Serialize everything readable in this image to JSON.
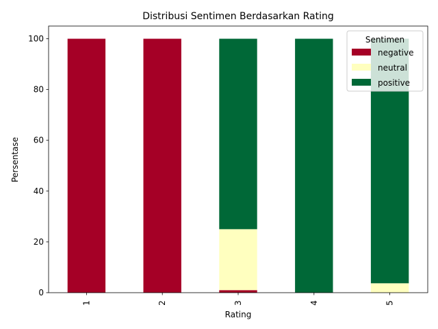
{
  "chart_data": {
    "type": "bar",
    "stacked": true,
    "title": "Distribusi Sentimen Berdasarkan Rating",
    "xlabel": "Rating",
    "ylabel": "Persentase",
    "categories": [
      "1",
      "2",
      "3",
      "4",
      "5"
    ],
    "ylim": [
      0,
      105
    ],
    "yticks": [
      0,
      20,
      40,
      60,
      80,
      100
    ],
    "grid": false,
    "legend": {
      "title": "Sentimen",
      "position": "top-right"
    },
    "series": [
      {
        "name": "negative",
        "color": "#a50026",
        "values": [
          100,
          100,
          1,
          0,
          0
        ]
      },
      {
        "name": "neutral",
        "color": "#ffffbf",
        "values": [
          0,
          0,
          24,
          0,
          3.7
        ]
      },
      {
        "name": "positive",
        "color": "#006837",
        "values": [
          0,
          0,
          75,
          100,
          96.3
        ]
      }
    ]
  }
}
